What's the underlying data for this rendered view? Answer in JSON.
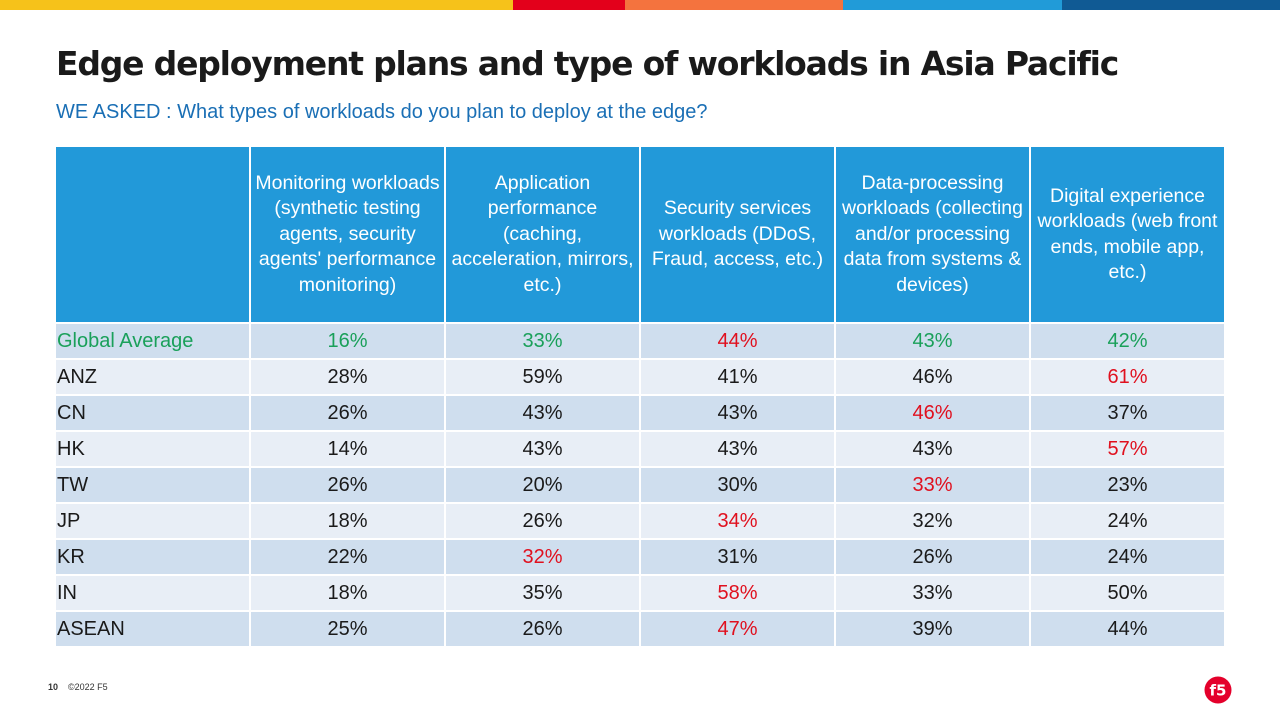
{
  "colors": {
    "bar": [
      "#f6c21a",
      "#e3001b",
      "#f4733e",
      "#219bd8",
      "#105a94"
    ],
    "header_bg": "#2299d9",
    "highlight_green": "#1aa05a",
    "highlight_red": "#e0101e",
    "subtitle": "#1a6fb5"
  },
  "title": "Edge deployment plans and type of workloads in Asia Pacific",
  "subtitle": "WE ASKED : What types of workloads  do you plan to deploy at the edge?",
  "table": {
    "headers": [
      "",
      "Monitoring workloads  (synthetic testing agents, security agents' performance monitoring)",
      "Application performance (caching, acceleration, mirrors, etc.)",
      "Security services workloads  (DDoS, Fraud, access,  etc.)",
      "Data-processing workloads (collecting and/or processing data from systems & devices)",
      "Digital experience workloads  (web front ends, mobile app, etc.)"
    ],
    "rows": [
      {
        "label": "Global  Average",
        "cells": [
          "16%",
          "33%",
          "44%",
          "43%",
          "42%"
        ]
      },
      {
        "label": "ANZ",
        "cells": [
          "28%",
          "59%",
          "41%",
          "46%",
          "61%"
        ]
      },
      {
        "label": "CN",
        "cells": [
          "26%",
          "43%",
          "43%",
          "46%",
          "37%"
        ]
      },
      {
        "label": "HK",
        "cells": [
          "14%",
          "43%",
          "43%",
          "43%",
          "57%"
        ]
      },
      {
        "label": "TW",
        "cells": [
          "26%",
          "20%",
          "30%",
          "33%",
          "23%"
        ]
      },
      {
        "label": "JP",
        "cells": [
          "18%",
          "26%",
          "34%",
          "32%",
          "24%"
        ]
      },
      {
        "label": "KR",
        "cells": [
          "22%",
          "32%",
          "31%",
          "26%",
          "24%"
        ]
      },
      {
        "label": "IN",
        "cells": [
          "18%",
          "35%",
          "58%",
          "33%",
          "50%"
        ]
      },
      {
        "label": "ASEAN",
        "cells": [
          "25%",
          "26%",
          "47%",
          "39%",
          "44%"
        ]
      }
    ],
    "highlights": {
      "green_row": 0,
      "red_cells": [
        [
          0,
          2
        ],
        [
          1,
          4
        ],
        [
          2,
          3
        ],
        [
          3,
          4
        ],
        [
          4,
          3
        ],
        [
          5,
          2
        ],
        [
          6,
          1
        ],
        [
          7,
          2
        ],
        [
          8,
          2
        ]
      ]
    }
  },
  "footer": {
    "page_number": "10",
    "copyright": "©2022 F5"
  },
  "logo": {
    "icon": "f5-logo-icon",
    "text": "f5"
  }
}
